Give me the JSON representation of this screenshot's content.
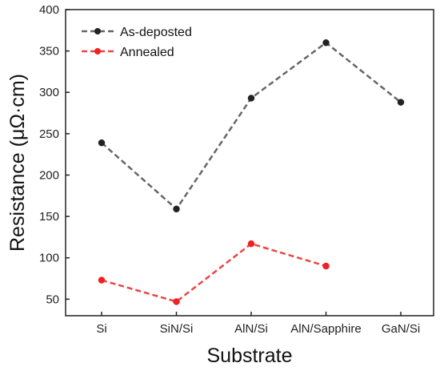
{
  "chart_data": {
    "type": "line",
    "categories": [
      "Si",
      "SiN/Si",
      "AlN/Si",
      "AlN/Sapphire",
      "GaN/Si"
    ],
    "series": [
      {
        "name": "As-deposted",
        "color": "#666666",
        "marker_color": "#222222",
        "line_style": "dashed",
        "values": [
          239,
          159,
          293,
          360,
          288
        ]
      },
      {
        "name": "Annealed",
        "color": "#ee4444",
        "marker_color": "#ee2222",
        "line_style": "dashed",
        "values": [
          73,
          47,
          117,
          90,
          null
        ]
      }
    ],
    "xlabel": "Substrate",
    "ylabel": "Resistance (μΩ·cm)",
    "ylim": [
      30,
      400
    ],
    "yticks": [
      "50",
      "100",
      "150",
      "200",
      "250",
      "300",
      "350",
      "400"
    ],
    "grid": false,
    "legend_position": "top-left"
  }
}
